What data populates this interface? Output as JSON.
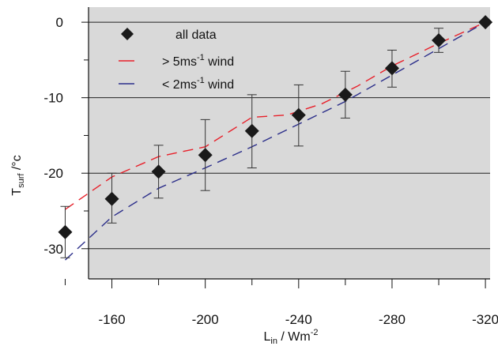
{
  "chart_data": {
    "type": "scatter",
    "xlabel": {
      "main": "L",
      "sub": "in",
      "rest": " / Wm",
      "sup": "-2"
    },
    "ylabel": {
      "main": "T",
      "sub": "surf",
      "rest": " /°c"
    },
    "xlim": [
      -150,
      -322
    ],
    "ylim": [
      -34,
      2
    ],
    "xticks": [
      -160,
      -200,
      -240,
      -280,
      -320
    ],
    "xtick_labels": [
      "-160",
      "-200",
      "-240",
      "-280",
      "-320"
    ],
    "yticks": [
      0,
      -10,
      -20,
      -30
    ],
    "ytick_labels": [
      "0",
      "-10",
      "-20",
      "-30"
    ],
    "grid": "horizontal",
    "legend_position": "top-left",
    "legend": [
      {
        "kind": "marker",
        "label": "all data"
      },
      {
        "kind": "dash",
        "label_pre": "> 5ms",
        "sup": "-1",
        "label_post": " wind"
      },
      {
        "kind": "dash",
        "label_pre": "< 2ms",
        "sup": "-1",
        "label_post": " wind"
      }
    ],
    "series": [
      {
        "name": "all data",
        "style": "diamond",
        "color": "#1a1a1a",
        "x": [
          -140,
          -160,
          -180,
          -200,
          -220,
          -240,
          -260,
          -280,
          -300,
          -320
        ],
        "y": [
          -27.8,
          -23.4,
          -19.8,
          -17.6,
          -14.4,
          -12.3,
          -9.6,
          -6.1,
          -2.4,
          0.0
        ],
        "err_low": [
          -31.2,
          -26.6,
          -23.3,
          -22.3,
          -19.3,
          -16.4,
          -12.7,
          -8.6,
          -4.0,
          null
        ],
        "err_high": [
          -24.4,
          -20.0,
          -16.3,
          -12.9,
          -9.6,
          -8.3,
          -6.5,
          -3.7,
          -0.8,
          null
        ]
      },
      {
        "name": "> 5ms-1 wind",
        "style": "dashed-line",
        "color": "#e8202a",
        "x": [
          -140,
          -160,
          -180,
          -200,
          -220,
          -235,
          -250,
          -265,
          -280,
          -300,
          -320
        ],
        "y": [
          -24.8,
          -20.5,
          -17.8,
          -16.5,
          -12.6,
          -12.3,
          -10.8,
          -8.5,
          -5.8,
          -2.8,
          0.0
        ]
      },
      {
        "name": "< 2ms-1 wind",
        "style": "dashed-line",
        "color": "#2b2e8a",
        "x": [
          -140,
          -160,
          -180,
          -200,
          -220,
          -240,
          -260,
          -280,
          -300,
          -320
        ],
        "y": [
          -31.5,
          -25.8,
          -22.0,
          -19.3,
          -16.5,
          -13.5,
          -10.5,
          -7.0,
          -3.5,
          0.0
        ]
      }
    ]
  },
  "colors": {
    "plot_background": "#d9d9d9",
    "grid": "#222222",
    "axis": "#111111"
  }
}
